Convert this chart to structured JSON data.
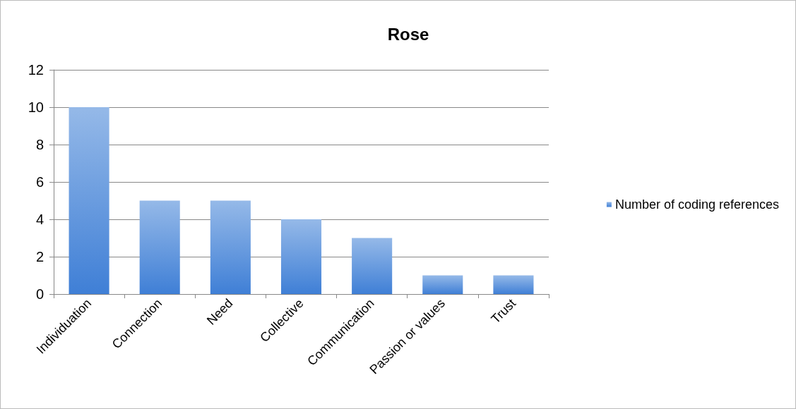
{
  "chart_data": {
    "type": "bar",
    "title": "Rose",
    "categories": [
      "Individuation",
      "Connection",
      "Need",
      "Collective",
      "Communication",
      "Passion or values",
      "Trust"
    ],
    "series": [
      {
        "name": "Number of coding references",
        "color": "#3f7fd6",
        "values": [
          10,
          5,
          5,
          4,
          3,
          1,
          1
        ]
      }
    ],
    "ylim": [
      0,
      12
    ],
    "yticks": [
      0,
      2,
      4,
      6,
      8,
      10,
      12
    ],
    "grid": "y",
    "legend": "right"
  }
}
